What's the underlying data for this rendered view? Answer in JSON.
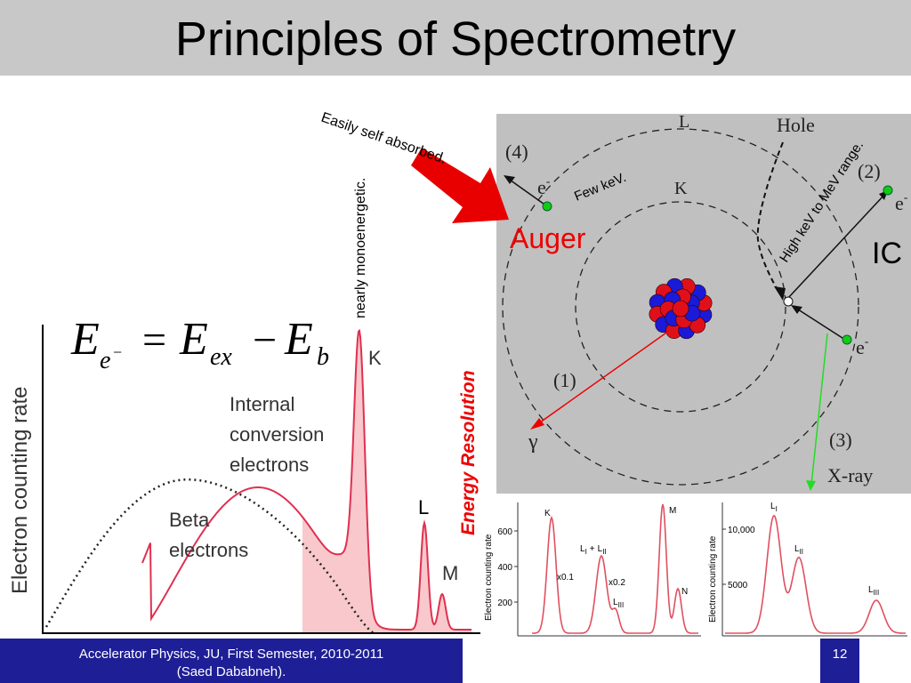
{
  "header": {
    "title": "Principles of Spectrometry"
  },
  "annotations": {
    "self_absorbed": "Easily self absorbed.",
    "monoenergetic": "nearly monoenergetic.",
    "few_kev": "Few keV.",
    "high_kev": "High keV to MeV range.",
    "auger": "Auger",
    "ic": "IC",
    "energy_resolution": "Energy Resolution"
  },
  "formula": {
    "e1": "E",
    "sub1": "e",
    "sup1": "−",
    "eq": "=",
    "e2": "E",
    "sub2": "ex",
    "minus": "−",
    "e3": "E",
    "sub3": "b"
  },
  "spectrum": {
    "y_label": "Electron counting rate",
    "ic_label": [
      "Internal",
      "conversion",
      "electrons"
    ],
    "beta_label": [
      "Beta",
      "electrons"
    ],
    "peaks": [
      "K",
      "L",
      "M"
    ]
  },
  "atom": {
    "shell_l": "L",
    "hole": "Hole",
    "shell_k": "K",
    "labels": [
      "(1)",
      "(2)",
      "(3)",
      "(4)"
    ],
    "electron": "e",
    "charge": "-",
    "gamma": "γ",
    "xray": "X-ray"
  },
  "inset1": {
    "y_label": "Electron counting rate",
    "yticks": [
      "600",
      "400",
      "200"
    ],
    "k": "K",
    "x01": "x0.1",
    "l": "L",
    "i": "I",
    "plus": "+",
    "ii": "II",
    "x02": "x0.2",
    "iii": "III",
    "m": "M",
    "n": "N"
  },
  "inset2": {
    "y_label": "Electron counting rate",
    "yticks": [
      "10,000",
      "5000"
    ],
    "l": "L",
    "i": "I",
    "ii": "II",
    "iii": "III"
  },
  "footer": {
    "line1": "Accelerator Physics, JU, First Semester, 2010-2011",
    "line2": "(Saed Dababneh).",
    "page": "12"
  }
}
